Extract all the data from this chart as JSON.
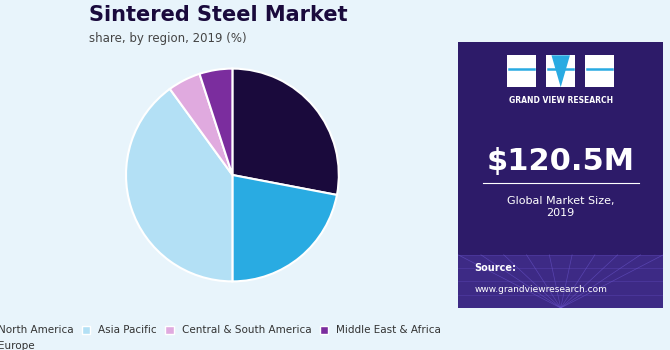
{
  "title": "Sintered Steel Market",
  "subtitle": "share, by region, 2019 (%)",
  "slices": [
    {
      "label": "North America",
      "value": 28,
      "color": "#1a0a3c"
    },
    {
      "label": "Europe",
      "value": 22,
      "color": "#29abe2"
    },
    {
      "label": "Asia Pacific",
      "value": 40,
      "color": "#b3e0f5"
    },
    {
      "label": "Central & South America",
      "value": 5,
      "color": "#e0aadf"
    },
    {
      "label": "Middle East & Africa",
      "value": 5,
      "color": "#7b2d9e"
    }
  ],
  "startangle": 90,
  "bg_color": "#e8f4fb",
  "right_panel_bg": "#2d1b69",
  "market_size": "$120.5M",
  "market_label": "Global Market Size,\n2019",
  "source_label": "Source:",
  "source_url": "www.grandviewresearch.com",
  "title_color": "#1a0a3c",
  "subtitle_color": "#444444",
  "legend_color": "#333333"
}
